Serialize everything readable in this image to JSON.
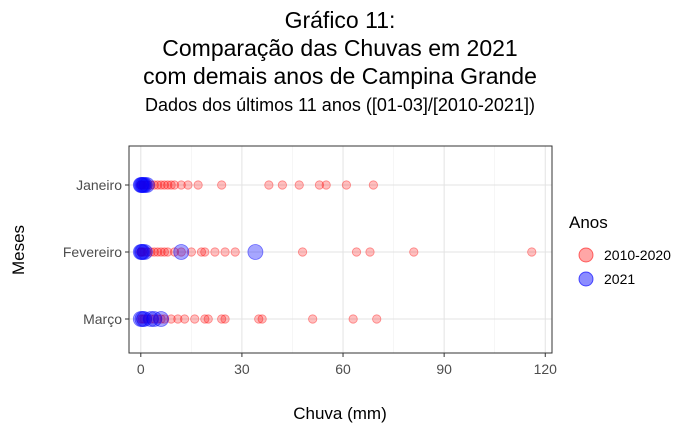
{
  "chart_data": {
    "type": "scatter",
    "title_lines": [
      "Gráfico 11:",
      "Comparação das Chuvas em 2021",
      "com demais anos de Campina Grande"
    ],
    "subtitle": "Dados dos últimos 11 anos ([01-03]/[2010-2021])",
    "xlabel": "Chuva (mm)",
    "ylabel": "Meses",
    "xlim": [
      -3.5,
      122
    ],
    "x_ticks": [
      0,
      30,
      60,
      90,
      120
    ],
    "categories": [
      "Janeiro",
      "Fevereiro",
      "Março"
    ],
    "grid": true,
    "legend": {
      "title": "Anos",
      "placement": "right"
    },
    "series": [
      {
        "name": "2010-2020",
        "color": "#ff0000",
        "opacity": 0.25,
        "size": "small",
        "points": [
          {
            "category": "Janeiro",
            "values": [
              0,
              0,
              0.3,
              0.5,
              1,
              1.5,
              2,
              3,
              4,
              5,
              6,
              7,
              8,
              9,
              10,
              12,
              14,
              17,
              24,
              38,
              42,
              47,
              53,
              55,
              61,
              69
            ]
          },
          {
            "category": "Fevereiro",
            "values": [
              0,
              0,
              0.3,
              0.5,
              1,
              2,
              3,
              4,
              5,
              6,
              7,
              8,
              10,
              12,
              15,
              18,
              19,
              22,
              25,
              28,
              48,
              64,
              68,
              81,
              116
            ]
          },
          {
            "category": "Março",
            "values": [
              0,
              0.5,
              1,
              2,
              3,
              4,
              5,
              6,
              7,
              9,
              11,
              13,
              16,
              19,
              20,
              24,
              25,
              35,
              36,
              51,
              63,
              70
            ]
          }
        ]
      },
      {
        "name": "2021",
        "color": "#0000ff",
        "opacity": 0.35,
        "size": "large",
        "points": [
          {
            "category": "Janeiro",
            "values": [
              0,
              0.2,
              0.5,
              0.8,
              1.2,
              1.8
            ]
          },
          {
            "category": "Fevereiro",
            "values": [
              0,
              0.3,
              0.6,
              1.2,
              12,
              34
            ]
          },
          {
            "category": "Março",
            "values": [
              0,
              0.5,
              1,
              3,
              4,
              6
            ]
          }
        ]
      }
    ]
  }
}
